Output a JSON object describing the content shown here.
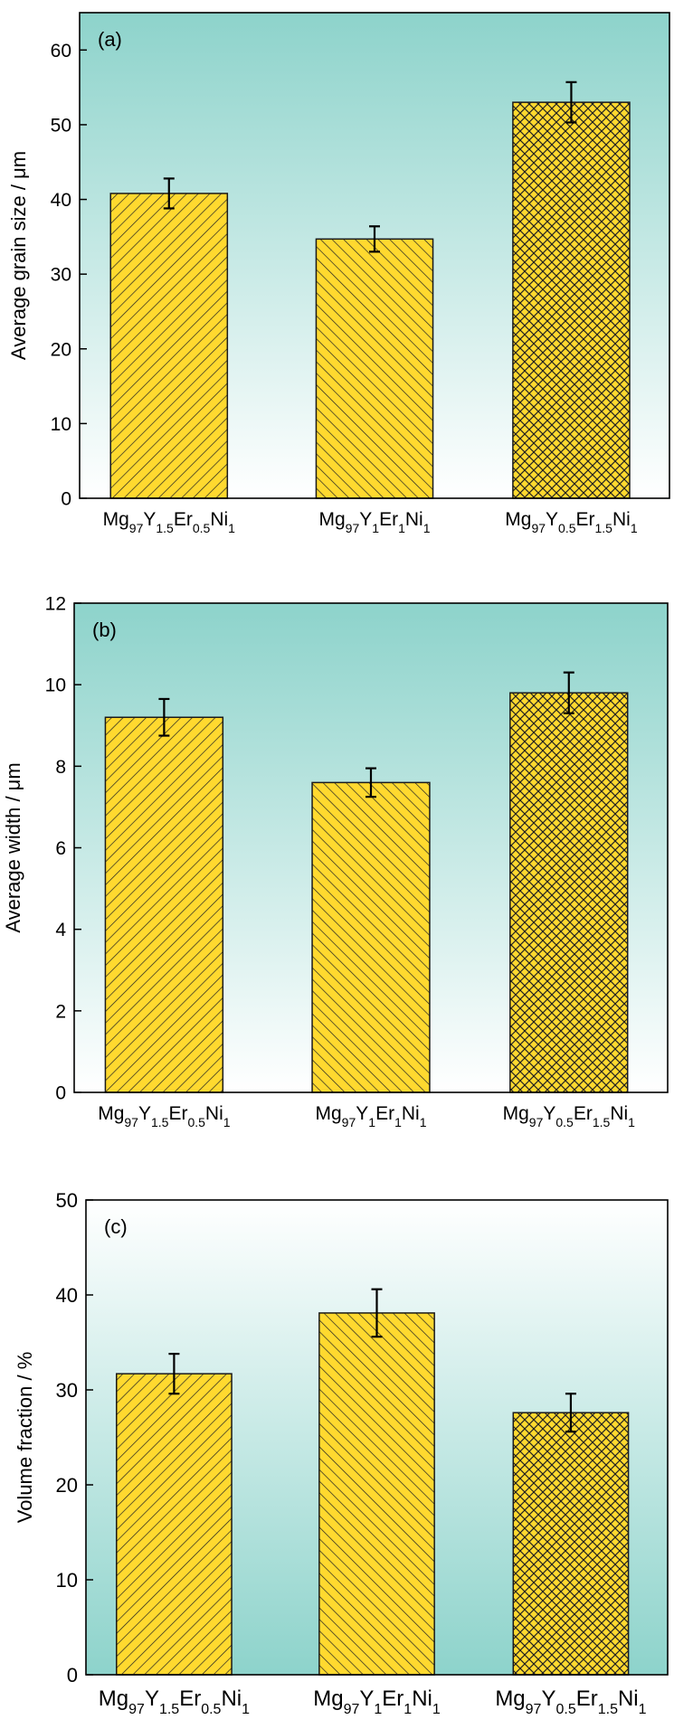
{
  "colors": {
    "bar_fill": "#FFD92F",
    "bar_stroke": "#1a1a1a",
    "hatch": "#222222",
    "bg_teal": "#8DD3CB",
    "bg_white": "#FFFFFF"
  },
  "chart_data": [
    {
      "type": "bar",
      "panel_label": "(a)",
      "ylabel": "Average grain size / μm",
      "ylim": [
        0,
        65
      ],
      "yticks": [
        0,
        10,
        20,
        30,
        40,
        50,
        60
      ],
      "gradient": "teal-top",
      "categories": [
        {
          "base": "Mg",
          "parts": [
            [
              "Mg",
              "97"
            ],
            [
              "Y",
              "1.5"
            ],
            [
              "Er",
              "0.5"
            ],
            [
              "Ni",
              "1"
            ]
          ]
        },
        {
          "base": "Mg",
          "parts": [
            [
              "Mg",
              "97"
            ],
            [
              "Y",
              "1"
            ],
            [
              "Er",
              "1"
            ],
            [
              "Ni",
              "1"
            ]
          ]
        },
        {
          "base": "Mg",
          "parts": [
            [
              "Mg",
              "97"
            ],
            [
              "Y",
              "0.5"
            ],
            [
              "Er",
              "1.5"
            ],
            [
              "Ni",
              "1"
            ]
          ]
        }
      ],
      "values": [
        40.8,
        34.7,
        53.0
      ],
      "errors": [
        2.0,
        1.7,
        2.7
      ],
      "hatches": [
        "diag-right",
        "diag-left",
        "cross"
      ]
    },
    {
      "type": "bar",
      "panel_label": "(b)",
      "ylabel": "Average width / μm",
      "ylim": [
        0,
        12
      ],
      "yticks": [
        0,
        2,
        4,
        6,
        8,
        10,
        12
      ],
      "gradient": "teal-top",
      "categories": [
        {
          "base": "Mg",
          "parts": [
            [
              "Mg",
              "97"
            ],
            [
              "Y",
              "1.5"
            ],
            [
              "Er",
              "0.5"
            ],
            [
              "Ni",
              "1"
            ]
          ]
        },
        {
          "base": "Mg",
          "parts": [
            [
              "Mg",
              "97"
            ],
            [
              "Y",
              "1"
            ],
            [
              "Er",
              "1"
            ],
            [
              "Ni",
              "1"
            ]
          ]
        },
        {
          "base": "Mg",
          "parts": [
            [
              "Mg",
              "97"
            ],
            [
              "Y",
              "0.5"
            ],
            [
              "Er",
              "1.5"
            ],
            [
              "Ni",
              "1"
            ]
          ]
        }
      ],
      "values": [
        9.2,
        7.6,
        9.8
      ],
      "errors": [
        0.45,
        0.35,
        0.5
      ],
      "hatches": [
        "diag-right",
        "diag-left",
        "cross"
      ]
    },
    {
      "type": "bar",
      "panel_label": "(c)",
      "ylabel": "Volume fraction / %",
      "ylim": [
        0,
        50
      ],
      "yticks": [
        0,
        10,
        20,
        30,
        40,
        50
      ],
      "gradient": "teal-bottom",
      "categories": [
        {
          "base": "Mg",
          "parts": [
            [
              "Mg",
              "97"
            ],
            [
              "Y",
              "1.5"
            ],
            [
              "Er",
              "0.5"
            ],
            [
              "Ni",
              "1"
            ]
          ]
        },
        {
          "base": "Mg",
          "parts": [
            [
              "Mg",
              "97"
            ],
            [
              "Y",
              "1"
            ],
            [
              "Er",
              "1"
            ],
            [
              "Ni",
              "1"
            ]
          ]
        },
        {
          "base": "Mg",
          "parts": [
            [
              "Mg",
              "97"
            ],
            [
              "Y",
              "0.5"
            ],
            [
              "Er",
              "1.5"
            ],
            [
              "Ni",
              "1"
            ]
          ]
        }
      ],
      "values": [
        31.7,
        38.1,
        27.6
      ],
      "errors": [
        2.1,
        2.5,
        2.0
      ],
      "hatches": [
        "diag-right",
        "diag-left",
        "cross"
      ]
    }
  ]
}
